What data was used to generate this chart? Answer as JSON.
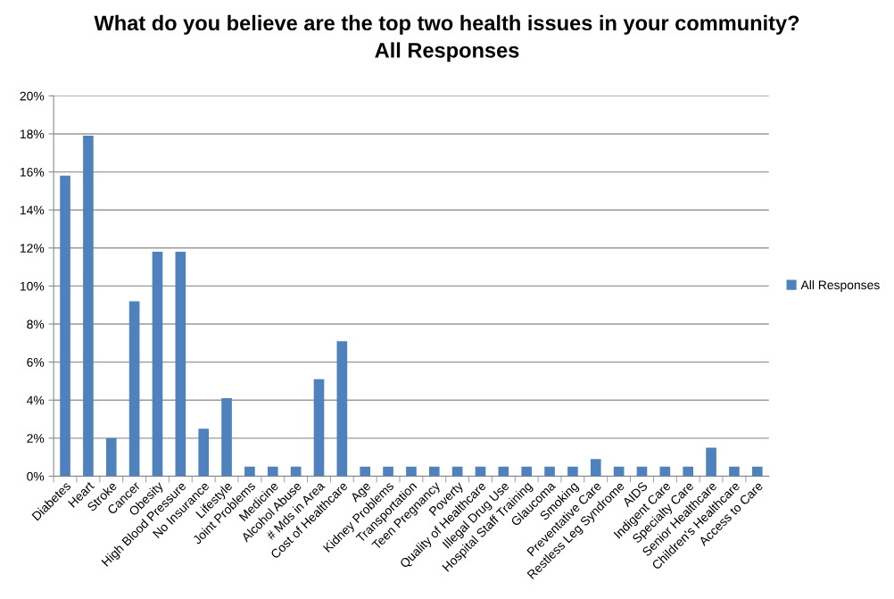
{
  "chart_data": {
    "type": "bar",
    "title": "What do you believe are the top two health issues in your community?\nAll Responses",
    "categories": [
      "Diabetes",
      "Heart",
      "Stroke",
      "Cancer",
      "Obesity",
      "High Blood Pressure",
      "No Insurance",
      "Lifestyle",
      "Joint Problems",
      "Medicine",
      "Alcohol Abuse",
      "# Mds in Area",
      "Cost of Healthcare",
      "Age",
      "Kidney Problems",
      "Transportation",
      "Teen Pregnancy",
      "Poverty",
      "Quality of Healthcare",
      "Illegal Drug Use",
      "Hospital Staff Training",
      "Glaucoma",
      "Smoking",
      "Preventative Care",
      "Restless Leg Syndrome",
      "AIDS",
      "Indigent Care",
      "Specialty Care",
      "Senior Healthcare",
      "Children's Healthcare",
      "Access to Care"
    ],
    "series": [
      {
        "name": "All Responses",
        "color": "#4f81bd",
        "values": [
          15.8,
          17.9,
          2.0,
          9.2,
          11.8,
          11.8,
          2.5,
          4.1,
          0.5,
          0.5,
          0.5,
          5.1,
          7.1,
          0.5,
          0.5,
          0.5,
          0.5,
          0.5,
          0.5,
          0.5,
          0.5,
          0.5,
          0.5,
          0.9,
          0.5,
          0.5,
          0.5,
          0.5,
          1.5,
          0.5,
          0.5
        ]
      }
    ],
    "ylim": [
      0,
      20
    ],
    "yticks": [
      {
        "value": 0,
        "label": "0%"
      },
      {
        "value": 2,
        "label": "2%"
      },
      {
        "value": 4,
        "label": "4%"
      },
      {
        "value": 6,
        "label": "6%"
      },
      {
        "value": 8,
        "label": "8%"
      },
      {
        "value": 10,
        "label": "10%"
      },
      {
        "value": 12,
        "label": "12%"
      },
      {
        "value": 14,
        "label": "14%"
      },
      {
        "value": 16,
        "label": "16%"
      },
      {
        "value": 18,
        "label": "18%"
      },
      {
        "value": 20,
        "label": "20%"
      }
    ],
    "grid": "y",
    "legend": "right"
  }
}
